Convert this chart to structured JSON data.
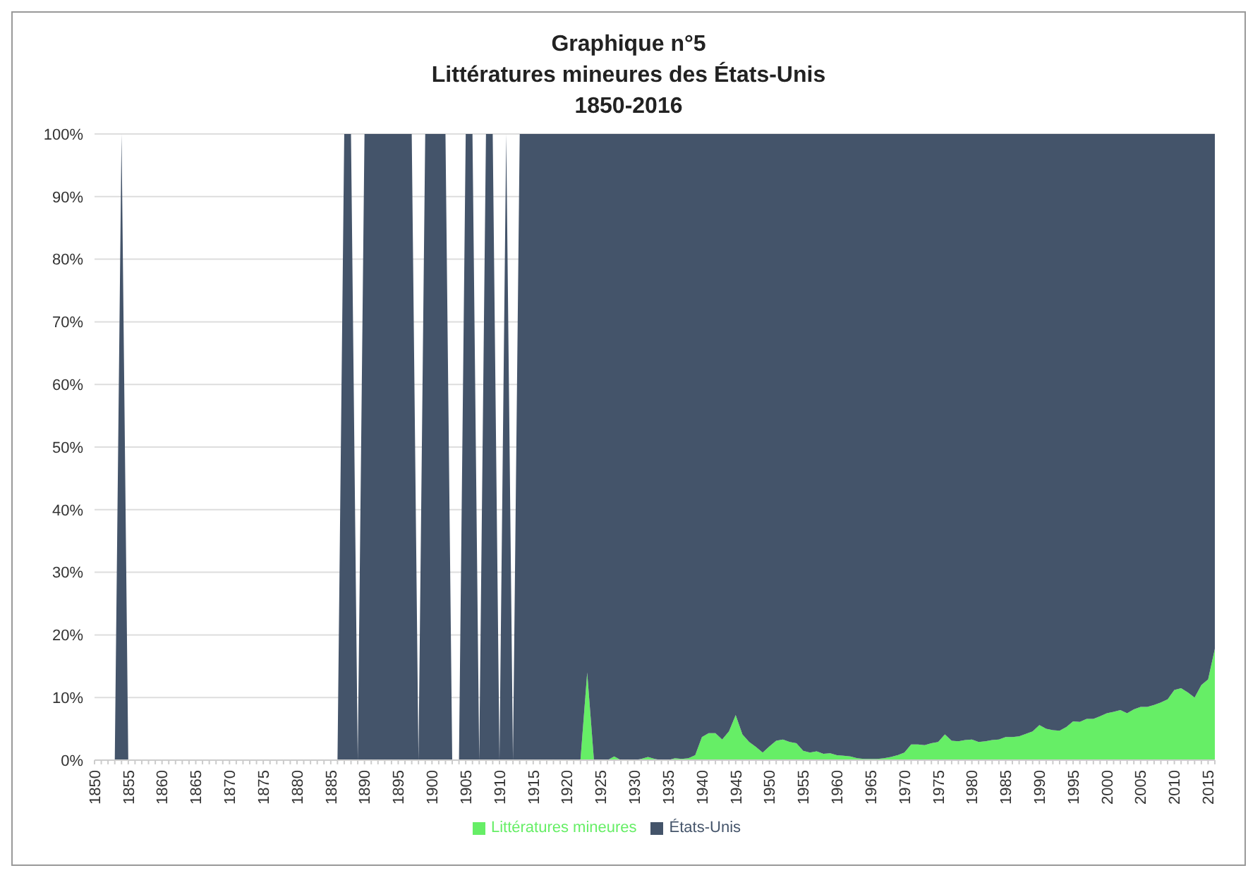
{
  "chart_data": {
    "type": "area",
    "title": "Graphique n°5\nLittératures mineures des États-Unis",
    "subtitle": "1850-2016",
    "stacked": true,
    "grid": "y",
    "legend": "bottom",
    "ylim": [
      0,
      100
    ],
    "yticks": [
      {
        "value": 0,
        "label": "0%"
      },
      {
        "value": 10,
        "label": "10%"
      },
      {
        "value": 20,
        "label": "20%"
      },
      {
        "value": 30,
        "label": "30%"
      },
      {
        "value": 40,
        "label": "40%"
      },
      {
        "value": 50,
        "label": "50%"
      },
      {
        "value": 60,
        "label": "60%"
      },
      {
        "value": 70,
        "label": "70%"
      },
      {
        "value": 80,
        "label": "80%"
      },
      {
        "value": 90,
        "label": "90%"
      },
      {
        "value": 100,
        "label": "100%"
      }
    ],
    "categories": [
      "1850",
      null,
      null,
      null,
      null,
      "1855",
      null,
      null,
      null,
      null,
      "1860",
      null,
      null,
      null,
      null,
      "1865",
      null,
      null,
      null,
      null,
      "1870",
      null,
      null,
      null,
      null,
      "1875",
      null,
      null,
      null,
      null,
      "1880",
      null,
      null,
      null,
      null,
      "1885",
      null,
      null,
      null,
      null,
      "1890",
      null,
      null,
      null,
      null,
      "1895",
      null,
      null,
      null,
      null,
      "1900",
      null,
      null,
      null,
      null,
      "1905",
      null,
      null,
      null,
      null,
      "1910",
      null,
      null,
      null,
      null,
      "1915",
      null,
      null,
      null,
      null,
      "1920",
      null,
      null,
      null,
      null,
      "1925",
      null,
      null,
      null,
      null,
      "1930",
      null,
      null,
      null,
      null,
      "1935",
      null,
      null,
      null,
      null,
      "1940",
      null,
      null,
      null,
      null,
      "1945",
      null,
      null,
      null,
      null,
      "1950",
      null,
      null,
      null,
      null,
      "1955",
      null,
      null,
      null,
      null,
      "1960",
      null,
      null,
      null,
      null,
      "1965",
      null,
      null,
      null,
      null,
      "1970",
      null,
      null,
      null,
      null,
      "1975",
      null,
      null,
      null,
      null,
      "1980",
      null,
      null,
      null,
      null,
      "1985",
      null,
      null,
      null,
      null,
      "1990",
      null,
      null,
      null,
      null,
      "1995",
      null,
      null,
      null,
      null,
      "2000",
      null,
      null,
      null,
      null,
      "2005",
      null,
      null,
      null,
      null,
      "2010",
      null,
      null,
      null,
      null,
      "2015",
      null
    ],
    "series": [
      {
        "name": "Littératures mineures",
        "color": "#66ee66",
        "values": [
          0,
          0,
          0,
          0,
          0,
          0,
          0,
          0,
          0,
          0,
          0,
          0,
          0,
          0,
          0,
          0,
          0,
          0,
          0,
          0,
          0,
          0,
          0,
          0,
          0,
          0,
          0,
          0,
          0,
          0,
          0,
          0,
          0,
          0,
          0,
          0,
          0,
          0,
          0,
          0,
          0,
          0,
          0,
          0,
          0,
          0,
          0,
          0,
          0,
          0,
          0,
          0,
          0,
          0,
          0,
          0,
          0,
          0,
          0,
          0,
          0,
          0,
          0,
          0,
          0,
          0,
          0,
          0,
          0,
          0,
          0,
          0,
          0,
          14,
          0,
          0,
          0,
          0.6,
          0,
          0,
          0,
          0.2,
          0.5,
          0.2,
          0,
          0,
          0.3,
          0.2,
          0.3,
          0.8,
          3.7,
          4.3,
          4.3,
          3.3,
          4.6,
          7.2,
          4.1,
          2.9,
          2.1,
          1.2,
          2.2,
          3.1,
          3.3,
          2.9,
          2.7,
          1.5,
          1.2,
          1.4,
          1.0,
          1.1,
          0.8,
          0.7,
          0.6,
          0.3,
          0.2,
          0.2,
          0.2,
          0.3,
          0.5,
          0.8,
          1.2,
          2.5,
          2.5,
          2.4,
          2.7,
          2.9,
          4.1,
          3.1,
          3.0,
          3.2,
          3.3,
          2.9,
          3.0,
          3.2,
          3.3,
          3.7,
          3.7,
          3.8,
          4.2,
          4.6,
          5.6,
          5.0,
          4.8,
          4.7,
          5.3,
          6.2,
          6.1,
          6.6,
          6.6,
          7.0,
          7.5,
          7.7,
          8.0,
          7.5,
          8.1,
          8.5,
          8.5,
          8.8,
          9.2,
          9.7,
          11.2,
          11.5,
          10.8,
          10.0,
          12.0,
          12.9,
          17.8
        ]
      },
      {
        "name": "États-Unis",
        "color": "#44546a",
        "values": [
          0,
          0,
          0,
          0,
          100,
          0,
          0,
          0,
          0,
          0,
          0,
          0,
          0,
          0,
          0,
          0,
          0,
          0,
          0,
          0,
          0,
          0,
          0,
          0,
          0,
          0,
          0,
          0,
          0,
          0,
          0,
          0,
          0,
          0,
          0,
          0,
          0,
          100,
          100,
          0,
          100,
          100,
          100,
          100,
          100,
          100,
          100,
          100,
          0,
          100,
          100,
          100,
          100,
          0,
          0,
          100,
          100,
          0,
          100,
          100,
          0,
          100,
          0,
          100,
          100,
          100,
          100,
          100,
          100,
          100,
          100,
          100,
          100,
          86,
          100,
          100,
          100,
          99.4,
          100,
          100,
          100,
          99.8,
          99.5,
          99.8,
          100,
          100,
          99.7,
          99.8,
          99.7,
          99.2,
          96.3,
          95.7,
          95.7,
          96.7,
          95.4,
          92.8,
          95.9,
          97.1,
          97.9,
          98.8,
          97.8,
          96.9,
          96.7,
          97.1,
          97.3,
          98.5,
          98.8,
          98.6,
          99,
          98.9,
          99.2,
          99.3,
          99.4,
          99.7,
          99.8,
          99.8,
          99.8,
          99.7,
          99.5,
          99.2,
          98.8,
          97.5,
          97.5,
          97.6,
          97.3,
          97.1,
          95.9,
          96.9,
          97,
          96.8,
          96.7,
          97.1,
          97,
          96.8,
          96.7,
          96.3,
          96.3,
          96.2,
          95.8,
          95.4,
          94.4,
          95,
          95.2,
          95.3,
          94.7,
          93.8,
          93.9,
          93.4,
          93.4,
          93,
          92.5,
          92.3,
          92,
          92.5,
          91.9,
          91.5,
          91.5,
          91.2,
          90.8,
          90.3,
          88.8,
          88.5,
          89.2,
          90,
          88,
          87.1,
          82.2
        ]
      }
    ]
  }
}
